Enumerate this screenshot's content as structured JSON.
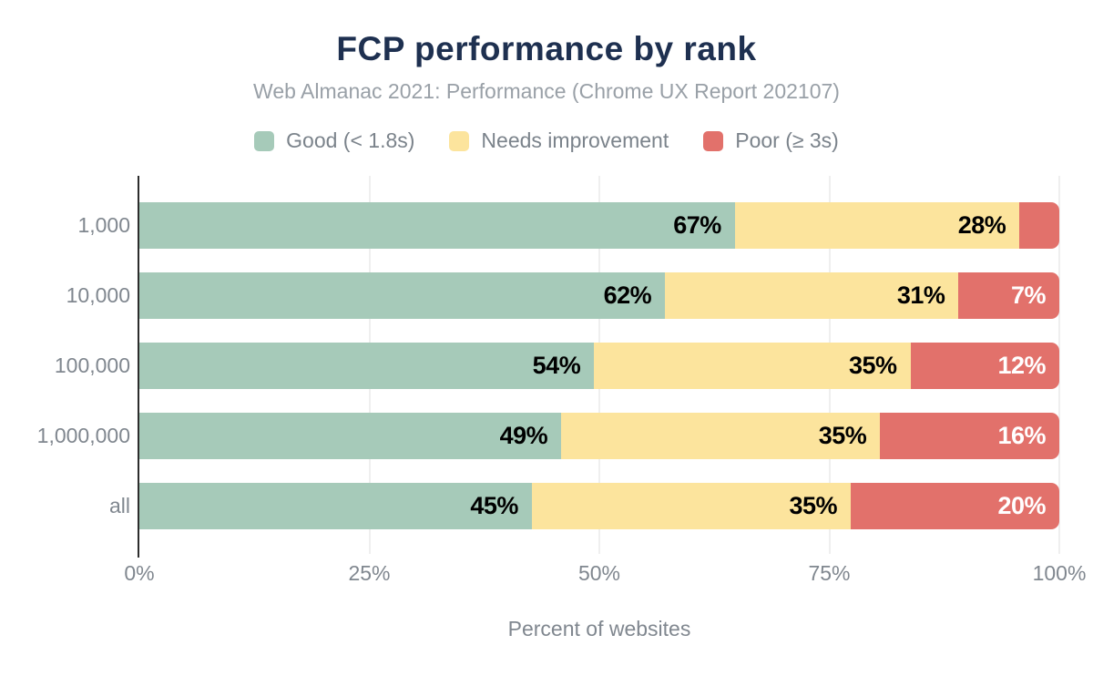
{
  "title": "FCP performance by rank",
  "subtitle": "Web Almanac 2021: Performance (Chrome UX Report 202107)",
  "colors": {
    "title_text": "#1e3050",
    "muted_text": "#80878f",
    "good": "#a6cab9",
    "needs_improvement": "#fce49d",
    "poor": "#e2716b",
    "gridline": "#efefef",
    "axis_line": "#2d2d2d",
    "label_dark": "#000000",
    "label_light": "#ffffff"
  },
  "legend": [
    {
      "label": "Good (< 1.8s)",
      "color": "#a6cab9"
    },
    {
      "label": "Needs improvement",
      "color": "#fce49d"
    },
    {
      "label": "Poor (≥ 3s)",
      "color": "#e2716b"
    }
  ],
  "chart_data": {
    "type": "bar",
    "orientation": "horizontal",
    "stacked": true,
    "title": "FCP performance by rank",
    "subtitle": "Web Almanac 2021: Performance (Chrome UX Report 202107)",
    "categories": [
      "1,000",
      "10,000",
      "100,000",
      "1,000,000",
      "all"
    ],
    "series": [
      {
        "name": "Good (< 1.8s)",
        "key": "good",
        "color": "#a6cab9",
        "values": [
          67,
          62,
          54,
          49,
          45
        ],
        "labels": [
          "67%",
          "62%",
          "54%",
          "49%",
          "45%"
        ],
        "label_color": "#000000",
        "rounded_end": false
      },
      {
        "name": "Needs improvement",
        "key": "needs-improvement",
        "color": "#fce49d",
        "values": [
          28,
          31,
          35,
          35,
          35
        ],
        "labels": [
          "28%",
          "31%",
          "35%",
          "35%",
          "35%"
        ],
        "label_color": "#000000",
        "rounded_end": false
      },
      {
        "name": "Poor (≥ 3s)",
        "key": "poor",
        "color": "#e2716b",
        "values": [
          5,
          7,
          12,
          16,
          20
        ],
        "labels": [
          "",
          "7%",
          "12%",
          "16%",
          "20%"
        ],
        "label_color": "#ffffff",
        "rounded_end": true
      }
    ],
    "xlabel": "Percent of websites",
    "ylabel": "",
    "xlim": [
      0,
      100
    ],
    "x_tick_values": [
      0,
      25,
      50,
      75,
      100
    ],
    "x_tick_labels": [
      "0%",
      "25%",
      "50%",
      "75%",
      "100%"
    ],
    "grid": "vertical",
    "legend_position": "top"
  }
}
